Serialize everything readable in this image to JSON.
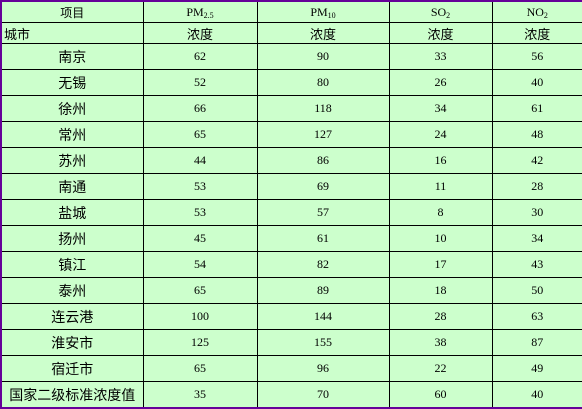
{
  "header": {
    "corner_top": "项目",
    "corner_bottom": "城市",
    "pollutants": [
      {
        "base": "PM",
        "sub": "2.5"
      },
      {
        "base": "PM",
        "sub": "10"
      },
      {
        "base": "SO",
        "sub": "2"
      },
      {
        "base": "NO",
        "sub": "2"
      }
    ],
    "units": [
      "浓度",
      "浓度",
      "浓度",
      "浓度"
    ]
  },
  "rows": [
    {
      "city": "南京",
      "values": [
        "62",
        "90",
        "33",
        "56"
      ]
    },
    {
      "city": "无锡",
      "values": [
        "52",
        "80",
        "26",
        "40"
      ]
    },
    {
      "city": "徐州",
      "values": [
        "66",
        "118",
        "34",
        "61"
      ]
    },
    {
      "city": "常州",
      "values": [
        "65",
        "127",
        "24",
        "48"
      ]
    },
    {
      "city": "苏州",
      "values": [
        "44",
        "86",
        "16",
        "42"
      ]
    },
    {
      "city": "南通",
      "values": [
        "53",
        "69",
        "11",
        "28"
      ]
    },
    {
      "city": "盐城",
      "values": [
        "53",
        "57",
        "8",
        "30"
      ]
    },
    {
      "city": "扬州",
      "values": [
        "45",
        "61",
        "10",
        "34"
      ]
    },
    {
      "city": "镇江",
      "values": [
        "54",
        "82",
        "17",
        "43"
      ]
    },
    {
      "city": "泰州",
      "values": [
        "65",
        "89",
        "18",
        "50"
      ]
    },
    {
      "city": "连云港",
      "values": [
        "100",
        "144",
        "28",
        "63"
      ]
    },
    {
      "city": "淮安市",
      "values": [
        "125",
        "155",
        "38",
        "87"
      ]
    },
    {
      "city": "宿迁市",
      "values": [
        "65",
        "96",
        "22",
        "49"
      ]
    },
    {
      "city": "国家二级标准浓度值",
      "values": [
        "35",
        "70",
        "60",
        "40"
      ]
    }
  ]
}
